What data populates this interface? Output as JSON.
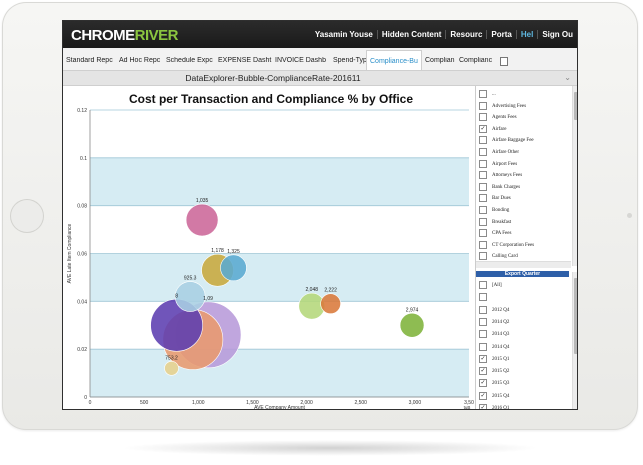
{
  "app": {
    "logo": {
      "part1": "CHROME",
      "part2": "RIVER"
    },
    "topnav": [
      "Yasamin Youse",
      "Hidden Content",
      "Resourc",
      "Porta",
      "Hel",
      "Sign Ou"
    ],
    "tabs": [
      "Standard Repc",
      "Ad Hoc Repc",
      "Schedule Expc",
      "EXPENSE Dasht",
      "INVOICE Dashb",
      "Spend-Typ",
      "Compliance-Bu",
      "Complian",
      "Complianc"
    ],
    "active_tab_index": 6,
    "report_title": "DataExplorer-Bubble-ComplianceRate-201611"
  },
  "colors": {
    "accent": "#8bc540",
    "band": "#d6ecf3",
    "link": "#2a8fc9",
    "list_header": "#2e5fa8"
  },
  "chart_data": {
    "type": "scatter",
    "title": "Cost per Transaction and Compliance % by Office",
    "xlabel": "AVE Company Amount",
    "ylabel": "AVE Late Item Compliance",
    "x_ticks": [
      "0",
      "500",
      "1,000",
      "1,500",
      "2,000",
      "2,500",
      "3,000",
      "3,50"
    ],
    "y_ticks": [
      "0",
      "0.02",
      "0.04",
      "0.06",
      "0.08",
      "0.1",
      "0.12"
    ],
    "xlim": [
      0,
      3500
    ],
    "ylim": [
      0,
      0.12
    ],
    "x_axis_extra_label": "tuB",
    "bubbles": [
      {
        "label": "1,035",
        "x": 1035,
        "y": 0.074,
        "r": 16,
        "color": "#cc6699"
      },
      {
        "label": "1,178",
        "x": 1178,
        "y": 0.053,
        "r": 16,
        "color": "#c8a83c"
      },
      {
        "label": "1,325",
        "x": 1325,
        "y": 0.054,
        "r": 13,
        "color": "#5aaad0"
      },
      {
        "label": "925.3",
        "x": 925,
        "y": 0.042,
        "r": 15,
        "color": "#a9cfe3"
      },
      {
        "label": "2,048",
        "x": 2048,
        "y": 0.038,
        "r": 13,
        "color": "#b4d77a"
      },
      {
        "label": "2,222",
        "x": 2222,
        "y": 0.039,
        "r": 10,
        "color": "#d9793a"
      },
      {
        "label": "2,974",
        "x": 2974,
        "y": 0.03,
        "r": 12,
        "color": "#7eb33a"
      },
      {
        "label": "8",
        "x": 800,
        "y": 0.03,
        "r": 26,
        "color": "#5c3eb0"
      },
      {
        "label": "753.2",
        "x": 753,
        "y": 0.012,
        "r": 7,
        "color": "#e6d08c"
      },
      {
        "label": "",
        "x": 950,
        "y": 0.024,
        "r": 30,
        "color": "#e89a6e"
      },
      {
        "label": "1,09",
        "x": 1090,
        "y": 0.026,
        "r": 33,
        "color": "#b79ad9"
      }
    ]
  },
  "filters": {
    "expense_types": [
      {
        "label": "...",
        "checked": false
      },
      {
        "label": "Advertising Fees",
        "checked": false
      },
      {
        "label": "Agents Fees",
        "checked": false
      },
      {
        "label": "Airfare",
        "checked": true
      },
      {
        "label": "Airfare Baggage Fee",
        "checked": false
      },
      {
        "label": "Airfare Other",
        "checked": false
      },
      {
        "label": "Airport Fees",
        "checked": false
      },
      {
        "label": "Attorneys Fees",
        "checked": false
      },
      {
        "label": "Bank Charges",
        "checked": false
      },
      {
        "label": "Bar Dues",
        "checked": false
      },
      {
        "label": "Bonding",
        "checked": false
      },
      {
        "label": "Breakfast",
        "checked": false
      },
      {
        "label": "CPA Fees",
        "checked": false
      },
      {
        "label": "CT Corporation Fees",
        "checked": false
      },
      {
        "label": "Calling Card",
        "checked": false
      }
    ],
    "quarter_header": "Export Quarter",
    "quarters": [
      {
        "label": "[All]",
        "checked": false
      },
      {
        "label": "",
        "checked": false
      },
      {
        "label": "2012 Q4",
        "checked": false
      },
      {
        "label": "2014 Q2",
        "checked": false
      },
      {
        "label": "2014 Q3",
        "checked": false
      },
      {
        "label": "2014 Q4",
        "checked": false
      },
      {
        "label": "2015 Q1",
        "checked": true
      },
      {
        "label": "2015 Q2",
        "checked": true
      },
      {
        "label": "2015 Q3",
        "checked": true
      },
      {
        "label": "2015 Q4",
        "checked": true
      },
      {
        "label": "2016 Q1",
        "checked": true
      }
    ]
  }
}
